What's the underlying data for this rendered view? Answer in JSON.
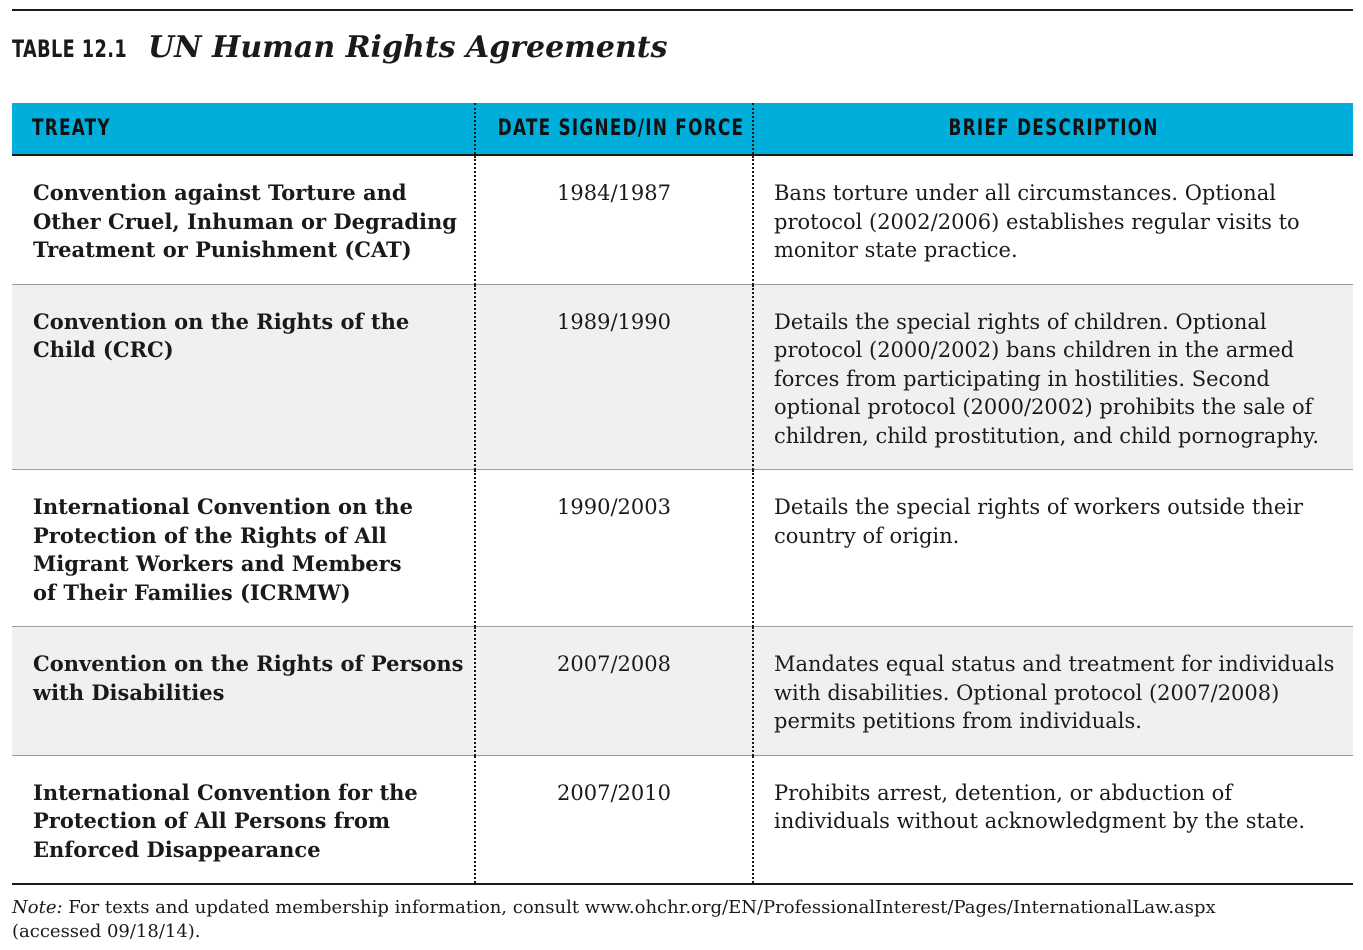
{
  "table_label": "TABLE 12.1",
  "table_title": "UN Human Rights Agreements",
  "headers": {
    "treaty": "TREATY",
    "date": "DATE SIGNED/IN FORCE",
    "description": "BRIEF DESCRIPTION"
  },
  "rows": [
    {
      "treaty_lines": [
        "Convention against Torture and",
        "Other Cruel, Inhuman or Degrading",
        "Treatment or Punishment (CAT)"
      ],
      "date": "1984/1987",
      "description_lines": [
        "Bans torture under all circumstances. Optional",
        "protocol (2002/2006) establishes regular visits to",
        "monitor state practice."
      ]
    },
    {
      "treaty_lines": [
        "Convention on the Rights of the",
        "Child (CRC)"
      ],
      "date": "1989/1990",
      "description_lines": [
        "Details the special rights of children. Optional",
        "protocol (2000/2002) bans children in the armed",
        "forces from participating in hostilities. Second",
        "optional protocol (2000/2002) prohibits the sale of",
        "children, child prostitution, and child pornography."
      ]
    },
    {
      "treaty_lines": [
        "International Convention on the",
        "Protection of the Rights of All",
        "Migrant Workers and Members",
        "of Their Families (ICRMW)"
      ],
      "date": "1990/2003",
      "description_lines": [
        "Details the special rights of workers outside their",
        "country of origin."
      ]
    },
    {
      "treaty_lines": [
        "Convention on the Rights of Persons",
        "with Disabilities"
      ],
      "date": "2007/2008",
      "description_lines": [
        "Mandates equal status and treatment for individuals",
        "with disabilities. Optional protocol (2007/2008)",
        "permits petitions from individuals."
      ]
    },
    {
      "treaty_lines": [
        "International Convention for the",
        "Protection of All Persons from",
        "Enforced Disappearance"
      ],
      "date": "2007/2010",
      "description_lines": [
        "Prohibits arrest, detention, or abduction of",
        "individuals without acknowledgment by the state."
      ]
    }
  ],
  "note": {
    "label": "Note:",
    "text_line1": " For texts and updated membership information, consult www.ohchr.org/EN/ProfessionalInterest/Pages/InternationalLaw.aspx",
    "text_line2": "(accessed 09/18/14)."
  },
  "colors": {
    "header_bg": "#00aedb",
    "shaded_row_bg": "#f0f0f0",
    "text": "#1a1a1a"
  }
}
